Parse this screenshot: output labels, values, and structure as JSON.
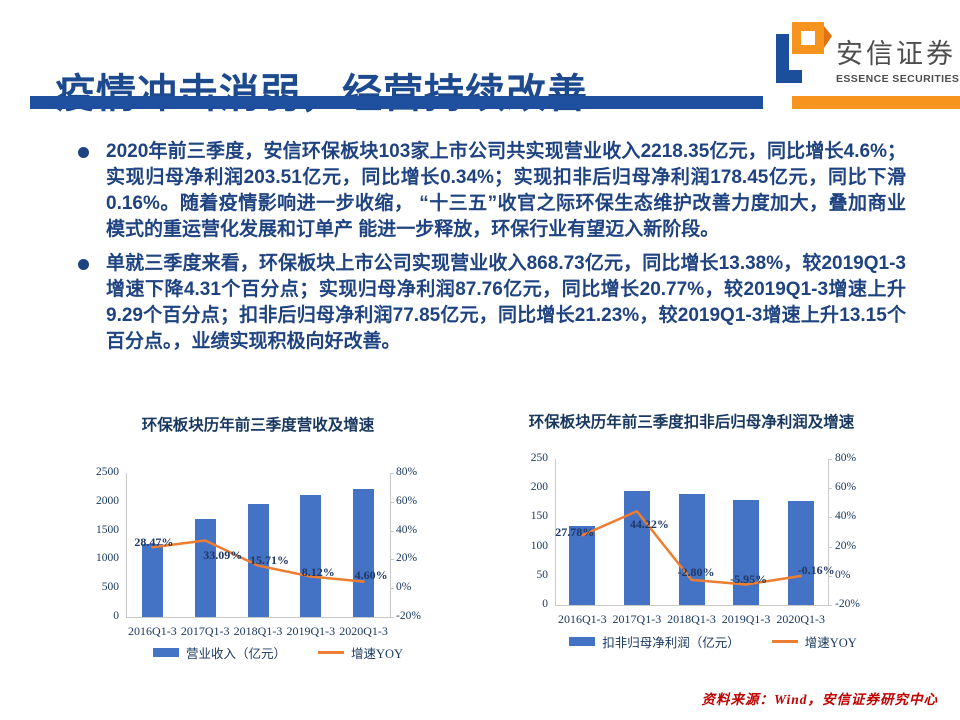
{
  "slide": {
    "title": "疫情冲击消弱，经营持续改善",
    "logo": {
      "name_cn": "安信证券",
      "name_en": "ESSENCE SECURITIES"
    },
    "source_note": "资料来源：Wind，安信证券研究中心"
  },
  "bullets": [
    {
      "text": "2020年前三季度，安信环保板块103家上市公司共实现营业收入2218.35亿元，同比增长4.6%；实现归母净利润203.51亿元，同比增长0.34%；实现扣非后归母净利润178.45亿元，同比下滑0.16%。随着疫情影响进一步收缩， “十三五”收官之际环保生态维护改善力度加大，叠加商业模式的重运营化发展和订单产 能进一步释放，环保行业有望迈入新阶段。"
    },
    {
      "text": "单就三季度来看，环保板块上市公司实现营业收入868.73亿元，同比增长13.38%，较2019Q1-3增速下降4.31个百分点；实现归母净利润87.76亿元，同比增长20.77%，较2019Q1-3增速上升9.29个百分点；扣非后归母净利润77.85亿元，同比增长21.23%，较2019Q1-3增速上升13.15个百分点。，业绩实现积极向好改善。"
    }
  ],
  "chart_data": [
    {
      "type": "bar",
      "title": "环保板块历年前三季度营收及增速",
      "categories": [
        "2016Q1-3",
        "2017Q1-3",
        "2018Q1-3",
        "2019Q1-3",
        "2020Q1-3"
      ],
      "series": [
        {
          "name": "营业收入（亿元）",
          "type": "bar",
          "axis": "left",
          "values": [
            1274,
            1695,
            1962,
            2121,
            2218
          ]
        },
        {
          "name": "增速YOY",
          "type": "line",
          "axis": "right",
          "values": [
            28.47,
            33.09,
            15.71,
            8.12,
            4.6
          ],
          "labels": [
            "28.47%",
            "33.09%",
            "15.71%",
            "8.12%",
            "4.60%"
          ]
        }
      ],
      "left_axis": {
        "min": 0,
        "max": 2500,
        "ticks": [
          "0",
          "500",
          "1000",
          "1500",
          "2000",
          "2500"
        ]
      },
      "right_axis": {
        "min": -20,
        "max": 80,
        "ticks": [
          "-20%",
          "0%",
          "20%",
          "40%",
          "60%",
          "80%"
        ]
      },
      "colors": {
        "bar": "#4472C4",
        "line": "#ED7D31"
      },
      "grid": false,
      "legend_position": "bottom"
    },
    {
      "type": "bar",
      "title": "环保板块历年前三季度扣非后归母净利润及增速",
      "categories": [
        "2016Q1-3",
        "2017Q1-3",
        "2018Q1-3",
        "2019Q1-3",
        "2020Q1-3"
      ],
      "series": [
        {
          "name": "扣非归母净利润（亿元）",
          "type": "bar",
          "axis": "left",
          "values": [
            136,
            196,
            190,
            179,
            178
          ]
        },
        {
          "name": "增速YOY",
          "type": "line",
          "axis": "right",
          "values": [
            27.78,
            44.22,
            -2.8,
            -5.95,
            -0.16
          ],
          "labels": [
            "27.78%",
            "44.22%",
            "-2.80%",
            "-5.95%",
            "-0.16%"
          ]
        }
      ],
      "left_axis": {
        "min": 0,
        "max": 250,
        "ticks": [
          "0",
          "50",
          "100",
          "150",
          "200",
          "250"
        ]
      },
      "right_axis": {
        "min": -20,
        "max": 80,
        "ticks": [
          "-20%",
          "0%",
          "20%",
          "40%",
          "60%",
          "80%"
        ]
      },
      "colors": {
        "bar": "#4472C4",
        "line": "#ED7D31"
      },
      "grid": false,
      "legend_position": "bottom"
    }
  ]
}
